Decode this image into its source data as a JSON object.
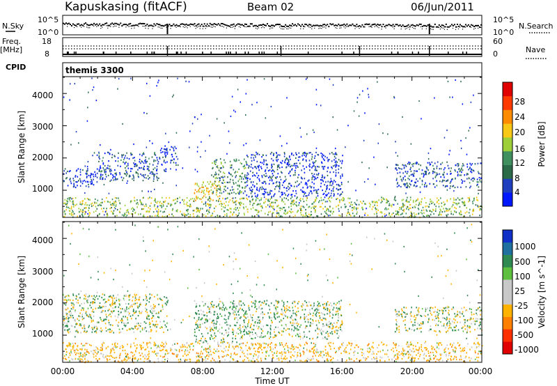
{
  "header": {
    "station": "Kapuskasing (fitACF)",
    "beam": "Beam 02",
    "date": "06/Jun/2011"
  },
  "strip_panels": {
    "noise": {
      "left_label": "N.Sky",
      "left_ticks": [
        "10^5",
        "10^0"
      ],
      "right_label": "N.Search",
      "right_ticks": [
        "10^5",
        "10^0"
      ]
    },
    "freq": {
      "left_label_top": "Freq.",
      "left_label_unit": "[MHz]",
      "left_ticks": [
        "18",
        "8"
      ],
      "right_label": "Nave",
      "right_ticks": [
        "60",
        "0"
      ]
    },
    "cpid": {
      "left_label": "CPID",
      "program": "themis 3300"
    }
  },
  "x_axis": {
    "label": "Time UT",
    "ticks": [
      "00:00",
      "04:00",
      "08:00",
      "12:00",
      "16:00",
      "20:00",
      "00:00"
    ]
  },
  "power_panel": {
    "ylabel": "Slant Range [km]",
    "yticks": [
      "1000",
      "2000",
      "3000",
      "4000"
    ],
    "colorbar_label": "Power [dB]",
    "colorbar_ticks": [
      "4",
      "8",
      "12",
      "16",
      "20",
      "24",
      "28"
    ],
    "colorbar_colors": [
      "#0018ff",
      "#1f3fbf",
      "#2c6b4a",
      "#3f8f5f",
      "#9ccf3a",
      "#f7c815",
      "#ff8c00",
      "#ff3a00",
      "#e00000"
    ]
  },
  "velocity_panel": {
    "ylabel": "Slant Range [km]",
    "yticks": [
      "1000",
      "2000",
      "3000",
      "4000"
    ],
    "colorbar_label": "Velocity [m s^-1]",
    "colorbar_ticks": [
      "1000",
      "500",
      "100",
      "25",
      "-25",
      "-100",
      "-500",
      "-1000"
    ],
    "colorbar_colors": [
      "#1030c8",
      "#1f6f9f",
      "#2f8a52",
      "#5fc040",
      "#c8c8c8",
      "#c8c8c8",
      "#ffb300",
      "#ff8000",
      "#ff3000",
      "#e00000"
    ]
  },
  "chart_data": {
    "type": "heatmap",
    "x_range_hours": [
      0,
      24
    ],
    "y_range_km": [
      180,
      4500
    ],
    "scatter_regions_power": [
      {
        "t": [
          0.0,
          2.0
        ],
        "range": [
          1100,
          1700
        ],
        "db": 6
      },
      {
        "t": [
          2.0,
          5.5
        ],
        "range": [
          1300,
          2200
        ],
        "db": 8
      },
      {
        "t": [
          5.5,
          6.5
        ],
        "range": [
          1600,
          2400
        ],
        "db": 5
      },
      {
        "t": [
          7.5,
          9.0
        ],
        "range": [
          700,
          1300
        ],
        "db": 20
      },
      {
        "t": [
          8.5,
          10.5
        ],
        "range": [
          900,
          2000
        ],
        "db": 12
      },
      {
        "t": [
          10.5,
          16.0
        ],
        "range": [
          800,
          2200
        ],
        "db": 6
      },
      {
        "t": [
          19.0,
          24.0
        ],
        "range": [
          1100,
          1900
        ],
        "db": 8
      },
      {
        "t": [
          0.0,
          24.0
        ],
        "range": [
          180,
          800
        ],
        "db": 16
      }
    ],
    "scatter_regions_velocity": [
      {
        "t": [
          0.0,
          6.0
        ],
        "range": [
          1100,
          2300
        ],
        "vel": 0
      },
      {
        "t": [
          7.5,
          10.0
        ],
        "range": [
          800,
          2100
        ],
        "vel": 100
      },
      {
        "t": [
          10.0,
          16.0
        ],
        "range": [
          900,
          2100
        ],
        "vel": 50
      },
      {
        "t": [
          19.0,
          24.0
        ],
        "range": [
          1100,
          1900
        ],
        "vel": 0
      },
      {
        "t": [
          0.0,
          24.0
        ],
        "range": [
          180,
          800
        ],
        "vel": -150
      }
    ]
  }
}
